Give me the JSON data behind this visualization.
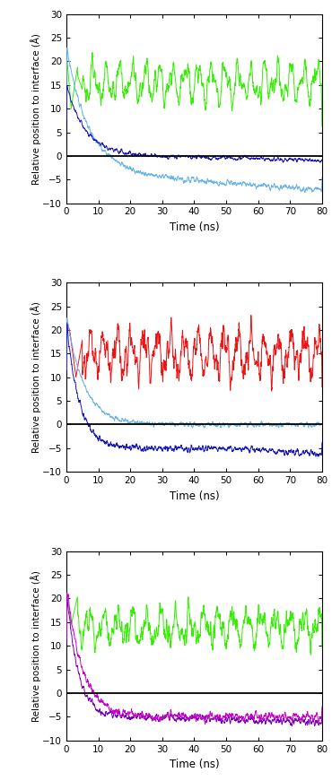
{
  "ylim": [
    -10,
    30
  ],
  "xlim": [
    0,
    80
  ],
  "yticks": [
    -10,
    -5,
    0,
    5,
    10,
    15,
    20,
    25,
    30
  ],
  "xticks": [
    0,
    10,
    20,
    30,
    40,
    50,
    60,
    70,
    80
  ],
  "ylabel": "Relative position to interface (Å)",
  "xlabel": "Time (ns)",
  "interface_y": 0,
  "colors": {
    "light_blue": "#6ab4e8",
    "dark_blue": "#1a1ab8",
    "green": "#33ee00",
    "red": "#ee1111",
    "purple": "#7700bb",
    "magenta": "#cc00cc",
    "black": "#000000"
  },
  "linewidth": 0.7,
  "seed": 12345
}
